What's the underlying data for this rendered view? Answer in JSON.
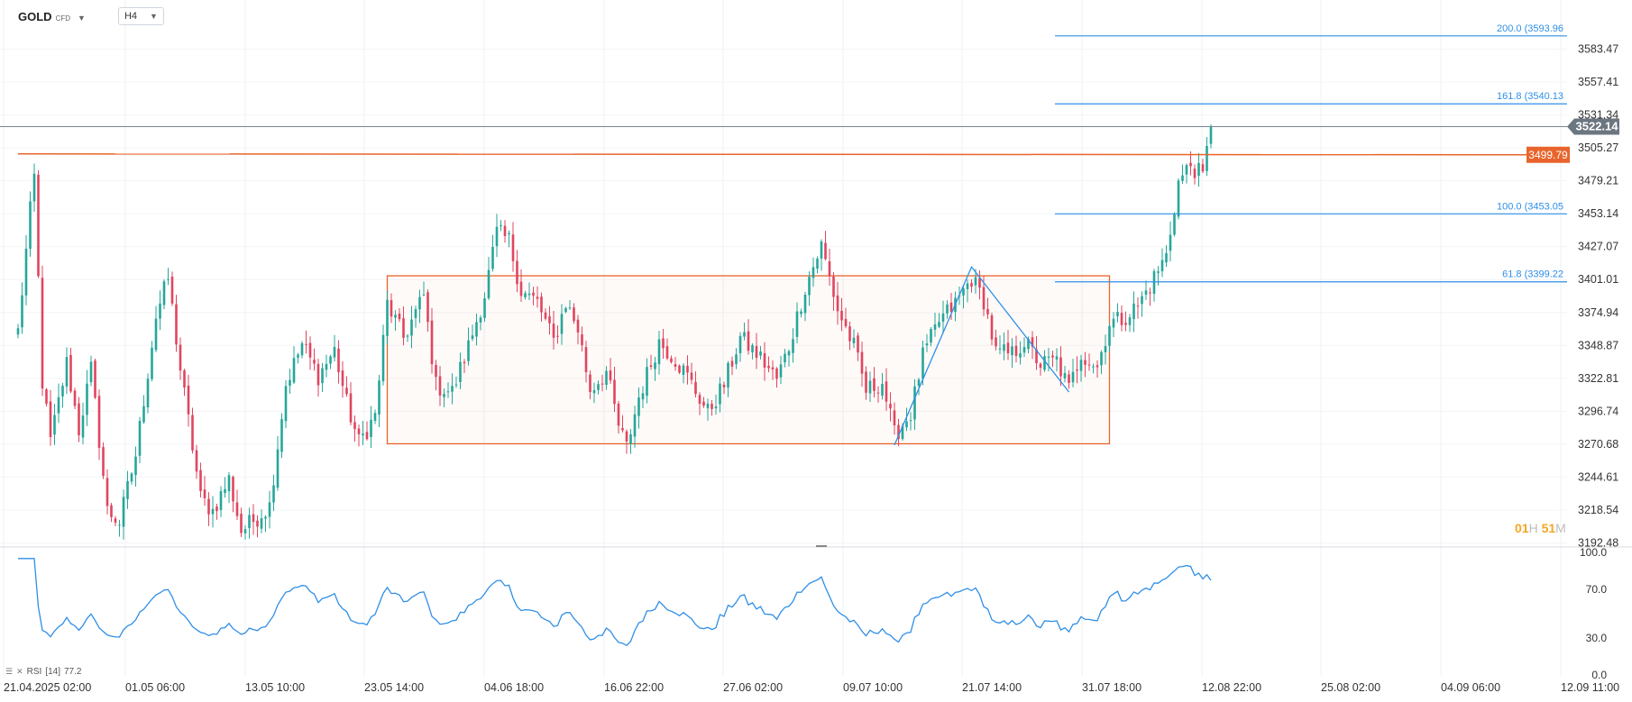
{
  "header": {
    "symbol": "GOLD",
    "symbol_type": "CFD",
    "timeframe": "H4"
  },
  "countdown": {
    "hours": "01",
    "hours_unit": "H",
    "minutes": "51",
    "minutes_unit": "M"
  },
  "rsi_label": {
    "name": "RSI",
    "period": "[14]",
    "value": "77.2"
  },
  "colors": {
    "bull": "#26a69a",
    "bear": "#e0455f",
    "orange": "#e8642c",
    "blue": "#2f8fe6",
    "price_line": "#7a8591"
  },
  "chart_data": {
    "type": "candlestick",
    "y_axis_ticks": [
      "3583.47",
      "3557.41",
      "3531.34",
      "3505.27",
      "3479.21",
      "3453.14",
      "3427.07",
      "3401.01",
      "3374.94",
      "3348.87",
      "3322.81",
      "3296.74",
      "3270.68",
      "3244.61",
      "3218.54",
      "3192.48"
    ],
    "ylim": [
      3192.48,
      3609.0
    ],
    "x_axis_ticks": [
      "21.04.2025  02:00",
      "01.05  06:00",
      "13.05  10:00",
      "23.05  14:00",
      "04.06  18:00",
      "16.06  22:00",
      "27.06  02:00",
      "09.07  10:00",
      "21.07  14:00",
      "31.07  18:00",
      "12.08  22:00",
      "25.08  02:00",
      "04.09  06:00",
      "12.09  11:00"
    ],
    "current_price": "3522.14",
    "horizontal_line": {
      "value": 3499.79,
      "label": "3499.79"
    },
    "fibonacci": [
      {
        "level": "200.0",
        "price": 3593.96,
        "label": "200.0 (3593.96"
      },
      {
        "level": "161.8",
        "price": 3540.13,
        "label": "161.8 (3540.13"
      },
      {
        "level": "100.0",
        "price": 3453.05,
        "label": "100.0 (3453.05"
      },
      {
        "level": "61.8",
        "price": 3399.22,
        "label": "61.8 (3399.22"
      }
    ],
    "range_box": {
      "high": 3404.0,
      "low": 3271.0,
      "from_bar": 91,
      "to_bar": 269
    },
    "zigzag": [
      {
        "bar": 216,
        "price": 3270.0
      },
      {
        "bar": 235,
        "price": 3411.0
      },
      {
        "bar": 259,
        "price": 3312.0
      }
    ],
    "rsi": {
      "name": "RSI",
      "period": 14,
      "current": 77.2,
      "ticks": [
        "100.0",
        "70.0",
        "30.0",
        "0.0"
      ],
      "ylim": [
        0,
        100
      ]
    },
    "anchor_closes": [
      [
        0,
        3360
      ],
      [
        3,
        3455
      ],
      [
        4,
        3482
      ],
      [
        6,
        3320
      ],
      [
        8,
        3273
      ],
      [
        12,
        3335
      ],
      [
        15,
        3282
      ],
      [
        18,
        3330
      ],
      [
        22,
        3218
      ],
      [
        25,
        3209
      ],
      [
        29,
        3262
      ],
      [
        34,
        3372
      ],
      [
        37,
        3402
      ],
      [
        40,
        3330
      ],
      [
        45,
        3228
      ],
      [
        48,
        3218
      ],
      [
        52,
        3243
      ],
      [
        55,
        3202
      ],
      [
        59,
        3213
      ],
      [
        62,
        3222
      ],
      [
        66,
        3318
      ],
      [
        70,
        3350
      ],
      [
        74,
        3325
      ],
      [
        78,
        3345
      ],
      [
        81,
        3303
      ],
      [
        84,
        3272
      ],
      [
        88,
        3293
      ],
      [
        91,
        3382
      ],
      [
        95,
        3355
      ],
      [
        100,
        3388
      ],
      [
        103,
        3317
      ],
      [
        107,
        3312
      ],
      [
        111,
        3348
      ],
      [
        115,
        3389
      ],
      [
        118,
        3438
      ],
      [
        121,
        3432
      ],
      [
        124,
        3392
      ],
      [
        128,
        3383
      ],
      [
        132,
        3352
      ],
      [
        135,
        3383
      ],
      [
        138,
        3362
      ],
      [
        141,
        3314
      ],
      [
        145,
        3328
      ],
      [
        148,
        3285
      ],
      [
        150,
        3268
      ],
      [
        153,
        3308
      ],
      [
        158,
        3352
      ],
      [
        162,
        3338
      ],
      [
        165,
        3324
      ],
      [
        170,
        3296
      ],
      [
        174,
        3318
      ],
      [
        178,
        3355
      ],
      [
        183,
        3339
      ],
      [
        187,
        3322
      ],
      [
        190,
        3348
      ],
      [
        194,
        3395
      ],
      [
        198,
        3428
      ],
      [
        202,
        3377
      ],
      [
        206,
        3348
      ],
      [
        209,
        3313
      ],
      [
        213,
        3320
      ],
      [
        216,
        3278
      ],
      [
        220,
        3295
      ],
      [
        223,
        3340
      ],
      [
        227,
        3368
      ],
      [
        231,
        3382
      ],
      [
        235,
        3402
      ],
      [
        238,
        3385
      ],
      [
        241,
        3343
      ],
      [
        245,
        3342
      ],
      [
        248,
        3352
      ],
      [
        252,
        3334
      ],
      [
        256,
        3337
      ],
      [
        259,
        3314
      ],
      [
        262,
        3343
      ],
      [
        266,
        3332
      ],
      [
        269,
        3367
      ],
      [
        272,
        3370
      ],
      [
        276,
        3380
      ],
      [
        279,
        3397
      ],
      [
        283,
        3420
      ],
      [
        286,
        3478
      ],
      [
        289,
        3492
      ],
      [
        292,
        3482
      ],
      [
        294,
        3522
      ]
    ]
  }
}
